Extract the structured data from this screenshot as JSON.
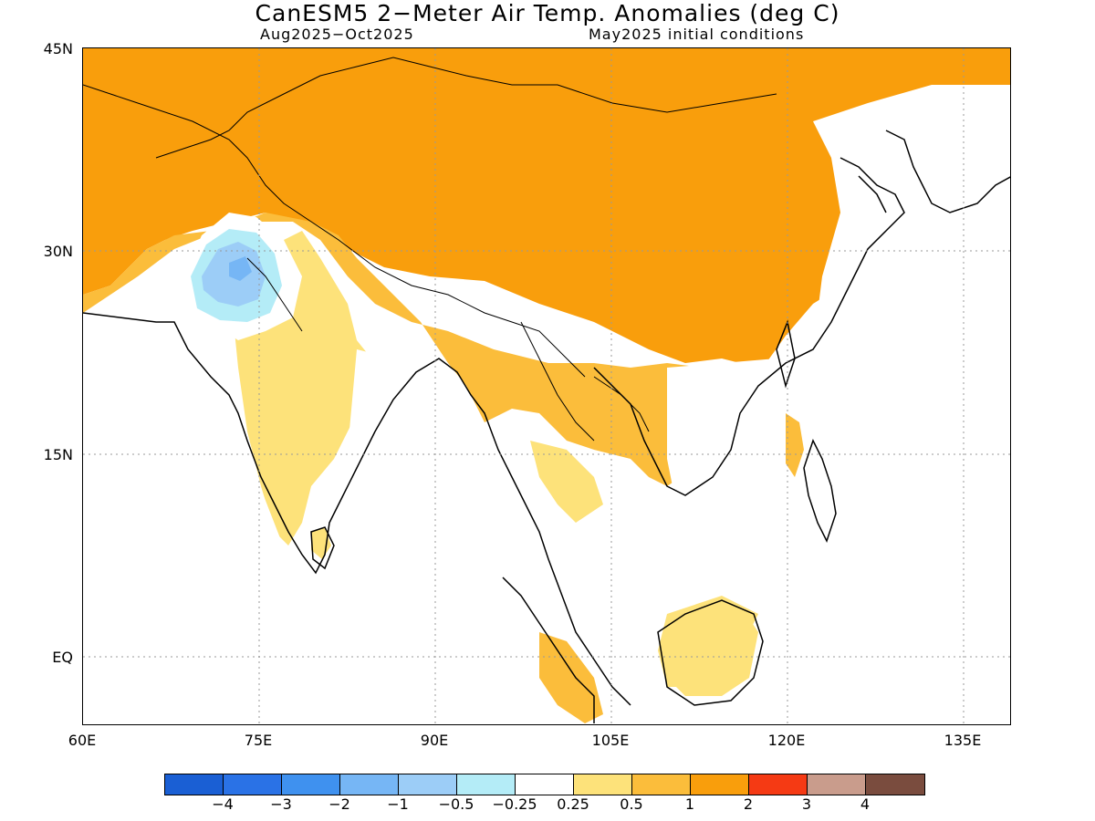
{
  "header": {
    "title": "CanESM5 2−Meter Air Temp. Anomalies (deg C)",
    "period": "Aug2025−Oct2025",
    "init": "May2025 initial conditions"
  },
  "axes": {
    "lat_labels": [
      "45N",
      "30N",
      "15N",
      "EQ"
    ],
    "lon_labels": [
      "60E",
      "75E",
      "90E",
      "105E",
      "120E",
      "135E"
    ]
  },
  "legend": {
    "colors": [
      "#1a5fd4",
      "#2a72e6",
      "#3f91ef",
      "#76b6f5",
      "#9ccdf7",
      "#b4ecf7",
      "#ffffff",
      "#fde27a",
      "#fbbd3b",
      "#f99e0c",
      "#f53a14",
      "#c99c8c",
      "#7a4c3e"
    ],
    "labels": [
      "−4",
      "−3",
      "−2",
      "−1",
      "−0.5",
      "−0.25",
      "0.25",
      "0.5",
      "1",
      "2",
      "3",
      "4"
    ]
  },
  "palette": {
    "warm_strong": "#f99e0c",
    "warm_mid": "#fbbd3b",
    "warm_light": "#fde27a",
    "cool_light": "#b4ecf7",
    "cool_mid": "#9ccdf7",
    "cool_strong": "#76b6f5"
  }
}
